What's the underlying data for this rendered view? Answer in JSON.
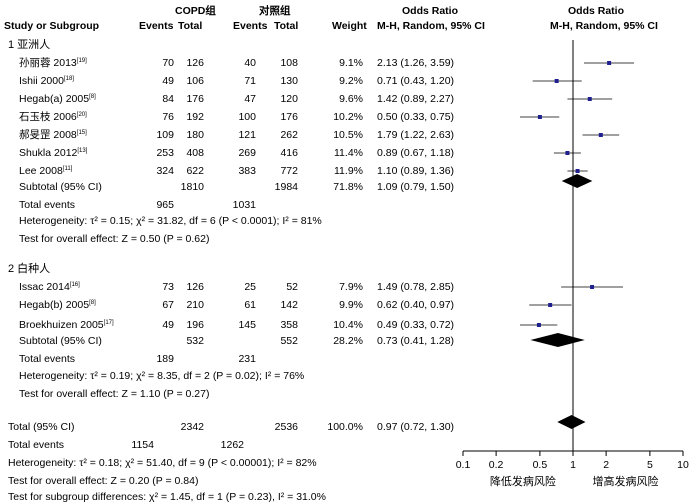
{
  "header": {
    "study_col": "Study or Subgroup",
    "group1": "COPD组",
    "group2": "对照组",
    "events": "Events",
    "total": "Total",
    "weight": "Weight",
    "or_title": "Odds Ratio",
    "or_sub": "M-H, Random, 95% CI"
  },
  "subgroups": [
    {
      "label": "1 亚洲人",
      "studies": [
        {
          "name": "孙丽蓉 2013",
          "ref": "[19]",
          "e1": "70",
          "t1": "126",
          "e2": "40",
          "t2": "108",
          "weight": "9.1%",
          "ci": "2.13 (1.26, 3.59)"
        },
        {
          "name": "Ishii 2000",
          "ref": "[18]",
          "e1": "49",
          "t1": "106",
          "e2": "71",
          "t2": "130",
          "weight": "9.2%",
          "ci": "0.71 (0.43, 1.20)"
        },
        {
          "name": "Hegab(a) 2005",
          "ref": "[8]",
          "e1": "84",
          "t1": "176",
          "e2": "47",
          "t2": "120",
          "weight": "9.6%",
          "ci": "1.42 (0.89, 2.27)"
        },
        {
          "name": "石玉枝 2006",
          "ref": "[20]",
          "e1": "76",
          "t1": "192",
          "e2": "100",
          "t2": "176",
          "weight": "10.2%",
          "ci": "0.50 (0.33, 0.75)"
        },
        {
          "name": "郝旻罡 2008",
          "ref": "[15]",
          "e1": "109",
          "t1": "180",
          "e2": "121",
          "t2": "262",
          "weight": "10.5%",
          "ci": "1.79 (1.22, 2.63)"
        },
        {
          "name": "Shukla 2012",
          "ref": "[13]",
          "e1": "253",
          "t1": "408",
          "e2": "269",
          "t2": "416",
          "weight": "11.4%",
          "ci": "0.89 (0.67, 1.18)"
        },
        {
          "name": "Lee 2008",
          "ref": "[11]",
          "e1": "324",
          "t1": "622",
          "e2": "383",
          "t2": "772",
          "weight": "11.9%",
          "ci": "1.10 (0.89, 1.36)"
        }
      ],
      "subtotal": {
        "label": "Subtotal (95% CI)",
        "t1": "1810",
        "t2": "1984",
        "weight": "71.8%",
        "ci": "1.09 (0.79, 1.50)"
      },
      "total_events": {
        "label": "Total events",
        "e1": "965",
        "e2": "1031"
      },
      "heterogeneity": "Heterogeneity: τ² = 0.15; χ² = 31.82, df = 6 (P < 0.0001); I² = 81%",
      "overall": "Test for overall effect: Z = 0.50 (P = 0.62)"
    },
    {
      "label": "2 白种人",
      "studies": [
        {
          "name": "Issac 2014",
          "ref": "[16]",
          "e1": "73",
          "t1": "126",
          "e2": "25",
          "t2": "52",
          "weight": "7.9%",
          "ci": "1.49 (0.78, 2.85)"
        },
        {
          "name": "Hegab(b) 2005",
          "ref": "[8]",
          "e1": "67",
          "t1": "210",
          "e2": "61",
          "t2": "142",
          "weight": "9.9%",
          "ci": "0.62 (0.40, 0.97)"
        },
        {
          "name": "Broekhuizen 2005",
          "ref": "[17]",
          "e1": "49",
          "t1": "196",
          "e2": "145",
          "t2": "358",
          "weight": "10.4%",
          "ci": "0.49 (0.33, 0.72)"
        }
      ],
      "subtotal": {
        "label": "Subtotal (95% CI)",
        "t1": "532",
        "t2": "552",
        "weight": "28.2%",
        "ci": "0.73 (0.41, 1.28)"
      },
      "total_events": {
        "label": "Total events",
        "e1": "189",
        "e2": "231"
      },
      "heterogeneity": "Heterogeneity: τ² = 0.19; χ² = 8.35, df = 2 (P = 0.02); I² = 76%",
      "overall": "Test for overall effect: Z = 1.10 (P = 0.27)"
    }
  ],
  "total": {
    "label": "Total (95% CI)",
    "t1": "2342",
    "t2": "2536",
    "weight": "100.0%",
    "ci": "0.97 (0.72, 1.30)"
  },
  "total_events": {
    "label": "Total events",
    "e1": "1154",
    "e2": "1262"
  },
  "heterogeneity": "Heterogeneity: τ² = 0.18; χ² = 51.40, df = 9 (P < 0.00001); I² = 82%",
  "overall": "Test for overall effect: Z = 0.20 (P = 0.84)",
  "subgroup_diff": "Test for subgroup differences: χ² = 1.45, df = 1 (P = 0.23), I² = 31.0%",
  "axis_ticks": [
    "0.1",
    "0.2",
    "0.5",
    "1",
    "2",
    "5",
    "10"
  ],
  "axis_left_label": "降低发病风险",
  "axis_right_label": "增高发病风险",
  "colors": {
    "marker": "#1f1f8f",
    "diamond": "#000000",
    "line": "#000000"
  },
  "chart_data": {
    "type": "forest",
    "x_scale": "log",
    "xlim": [
      0.1,
      10
    ],
    "reference_line": 1,
    "studies": [
      {
        "name": "孙丽蓉 2013",
        "or": 2.13,
        "lo": 1.26,
        "hi": 3.59,
        "weight": 9.1
      },
      {
        "name": "Ishii 2000",
        "or": 0.71,
        "lo": 0.43,
        "hi": 1.2,
        "weight": 9.2
      },
      {
        "name": "Hegab(a) 2005",
        "or": 1.42,
        "lo": 0.89,
        "hi": 2.27,
        "weight": 9.6
      },
      {
        "name": "石玉枝 2006",
        "or": 0.5,
        "lo": 0.33,
        "hi": 0.75,
        "weight": 10.2
      },
      {
        "name": "郝旻罡 2008",
        "or": 1.79,
        "lo": 1.22,
        "hi": 2.63,
        "weight": 10.5
      },
      {
        "name": "Shukla 2012",
        "or": 0.89,
        "lo": 0.67,
        "hi": 1.18,
        "weight": 11.4
      },
      {
        "name": "Lee 2008",
        "or": 1.1,
        "lo": 0.89,
        "hi": 1.36,
        "weight": 11.9
      },
      {
        "name": "Subtotal (95% CI)",
        "or": 1.09,
        "lo": 0.79,
        "hi": 1.5,
        "summary": true
      },
      {
        "name": "Issac 2014",
        "or": 1.49,
        "lo": 0.78,
        "hi": 2.85,
        "weight": 7.9
      },
      {
        "name": "Hegab(b) 2005",
        "or": 0.62,
        "lo": 0.4,
        "hi": 0.97,
        "weight": 9.9
      },
      {
        "name": "Broekhuizen 2005",
        "or": 0.49,
        "lo": 0.33,
        "hi": 0.72,
        "weight": 10.4
      },
      {
        "name": "Subtotal (95% CI)",
        "or": 0.73,
        "lo": 0.41,
        "hi": 1.28,
        "summary": true
      },
      {
        "name": "Total (95% CI)",
        "or": 0.97,
        "lo": 0.72,
        "hi": 1.3,
        "summary": true
      }
    ]
  }
}
